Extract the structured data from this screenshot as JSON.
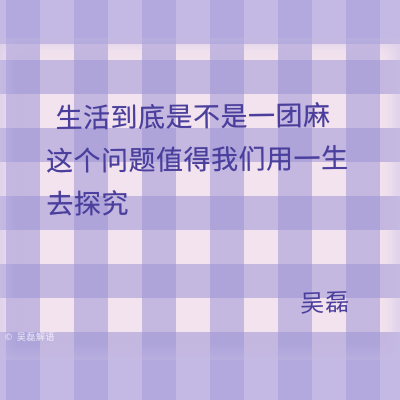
{
  "quote": {
    "lines": [
      "生活到底是不是一团麻",
      "这个问题值得我们用一生",
      "去探究"
    ]
  },
  "signature": "吴磊",
  "watermark": "© 吴磊解语",
  "colors": {
    "border_lavender": "#c7bde6",
    "gingham_stripe": "#9c94d6",
    "card_pink": "#f3e3ee",
    "ink": "#4a3f9c"
  }
}
